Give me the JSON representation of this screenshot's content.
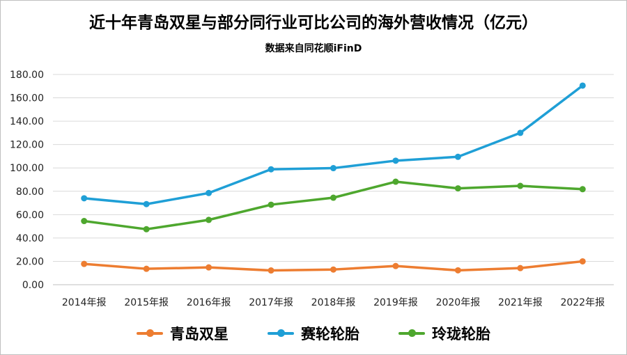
{
  "chart_data": {
    "type": "line",
    "title": "近十年青岛双星与部分同行业可比公司的海外营收情况（亿元）",
    "subtitle": "数据来自同花顺iFinD",
    "xlabel": "",
    "ylabel": "",
    "ylim": [
      0,
      180
    ],
    "yticks": [
      "0.00",
      "20.00",
      "40.00",
      "60.00",
      "80.00",
      "100.00",
      "120.00",
      "140.00",
      "160.00",
      "180.00"
    ],
    "categories": [
      "2014年报",
      "2015年报",
      "2016年报",
      "2017年报",
      "2018年报",
      "2019年报",
      "2020年报",
      "2021年报",
      "2022年报"
    ],
    "series": [
      {
        "name": "青岛双星",
        "color": "#ed7d31",
        "values": [
          17.8,
          13.6,
          14.8,
          12.2,
          13.0,
          16.0,
          12.3,
          14.2,
          20.0
        ]
      },
      {
        "name": "赛轮轮胎",
        "color": "#1f9fd6",
        "values": [
          74.0,
          69.0,
          78.5,
          98.8,
          99.8,
          106.2,
          109.5,
          130.0,
          170.5
        ]
      },
      {
        "name": "玲珑轮胎",
        "color": "#4ea72e",
        "values": [
          54.5,
          47.5,
          55.5,
          68.5,
          74.5,
          88.2,
          82.5,
          84.6,
          81.8
        ]
      }
    ],
    "grid": true,
    "legend": "bottom"
  }
}
